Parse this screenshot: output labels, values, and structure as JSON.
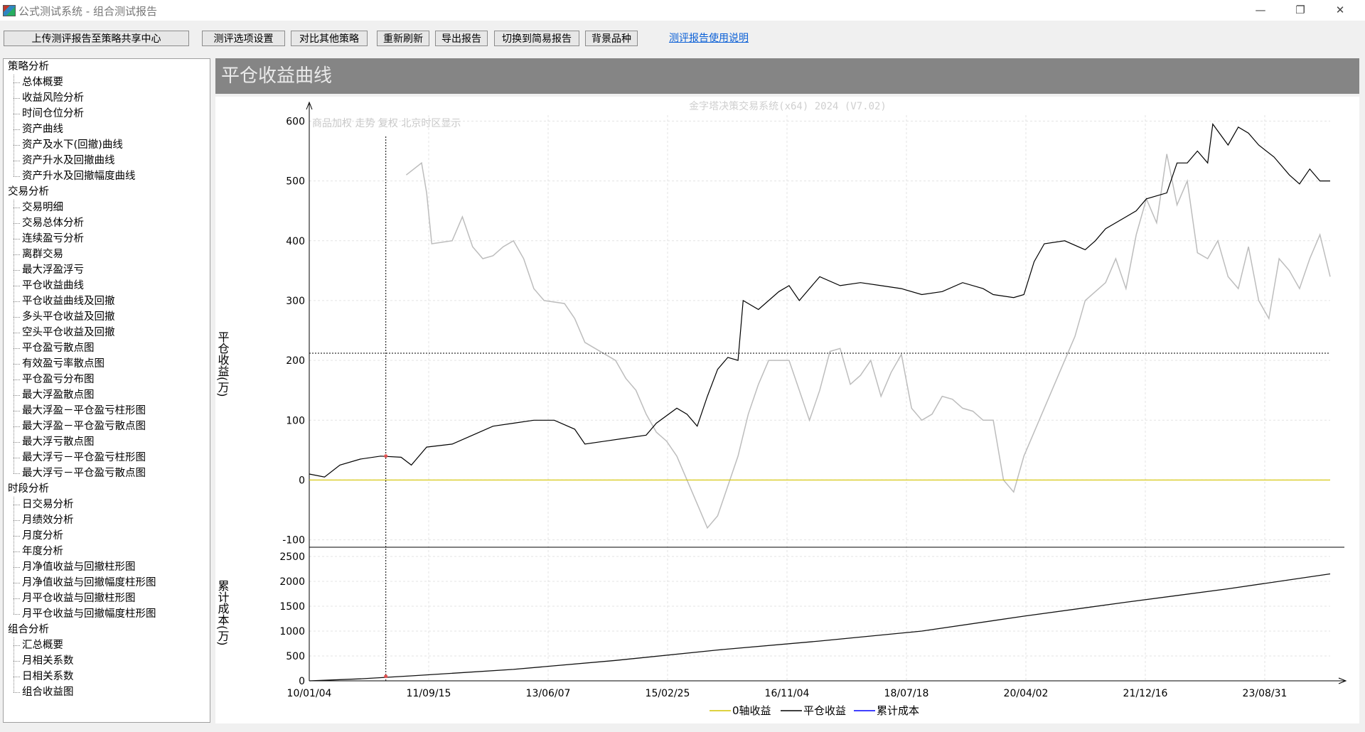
{
  "window": {
    "title": "公式测试系统 - 组合测试报告",
    "min_glyph": "—",
    "restore_glyph": "❐",
    "close_glyph": "✕"
  },
  "toolbar": {
    "upload_label": "上传测评报告至策略共享中心",
    "options_label": "测评选项设置",
    "compare_label": "对比其他策略",
    "refresh_label": "重新刷新",
    "export_label": "导出报告",
    "simple_label": "切换到简易报告",
    "bg_label": "背景品种",
    "help_label": "测评报告使用说明"
  },
  "sidebar": {
    "groups": [
      {
        "label": "策略分析",
        "items": [
          "总体概要",
          "收益风险分析",
          "时间仓位分析",
          "资产曲线",
          "资产及水下(回撤)曲线",
          "资产升水及回撤曲线",
          "资产升水及回撤幅度曲线"
        ]
      },
      {
        "label": "交易分析",
        "items": [
          "交易明细",
          "交易总体分析",
          "连续盈亏分析",
          "离群交易",
          "最大浮盈浮亏",
          "平仓收益曲线",
          "平仓收益曲线及回撤",
          "多头平仓收益及回撤",
          "空头平仓收益及回撤",
          "平仓盈亏散点图",
          "有效盈亏率散点图",
          "平仓盈亏分布图",
          "最大浮盈散点图",
          "最大浮盈－平仓盈亏柱形图",
          "最大浮盈－平仓盈亏散点图",
          "最大浮亏散点图",
          "最大浮亏－平仓盈亏柱形图",
          "最大浮亏－平仓盈亏散点图"
        ]
      },
      {
        "label": "时段分析",
        "items": [
          "日交易分析",
          "月绩效分析",
          "月度分析",
          "年度分析",
          "月净值收益与回撤柱形图",
          "月净值收益与回撤幅度柱形图",
          "月平仓收益与回撤柱形图",
          "月平仓收益与回撤幅度柱形图"
        ]
      },
      {
        "label": "组合分析",
        "items": [
          "汇总概要",
          "月相关系数",
          "日相关系数",
          "组合收益图"
        ]
      }
    ]
  },
  "panel": {
    "title": "平仓收益曲线"
  },
  "chart_data": {
    "type": "line",
    "watermark": "金字塔决策交易系统(x64) 2024 (V7.02)",
    "bg_info": "商品加权  走势  复权  北京时区显示",
    "top": {
      "ylabel": "平仓收益(万)",
      "ylim": [
        -110,
        610
      ],
      "yticks": [
        600,
        500,
        400,
        300,
        200,
        100,
        0,
        -100
      ],
      "series": [
        {
          "name": "0轴收益",
          "color": "#d4c400",
          "values": [
            0,
            0
          ]
        },
        {
          "name": "平仓收益",
          "color": "#000000",
          "points": [
            [
              0,
              10
            ],
            [
              0.015,
              5
            ],
            [
              0.03,
              25
            ],
            [
              0.05,
              35
            ],
            [
              0.07,
              40
            ],
            [
              0.09,
              38
            ],
            [
              0.1,
              25
            ],
            [
              0.115,
              55
            ],
            [
              0.14,
              60
            ],
            [
              0.16,
              75
            ],
            [
              0.18,
              90
            ],
            [
              0.2,
              95
            ],
            [
              0.22,
              100
            ],
            [
              0.24,
              100
            ],
            [
              0.26,
              85
            ],
            [
              0.27,
              60
            ],
            [
              0.29,
              65
            ],
            [
              0.31,
              70
            ],
            [
              0.33,
              75
            ],
            [
              0.34,
              95
            ],
            [
              0.36,
              120
            ],
            [
              0.37,
              110
            ],
            [
              0.38,
              90
            ],
            [
              0.39,
              140
            ],
            [
              0.4,
              185
            ],
            [
              0.41,
              205
            ],
            [
              0.42,
              200
            ],
            [
              0.425,
              300
            ],
            [
              0.44,
              285
            ],
            [
              0.46,
              315
            ],
            [
              0.47,
              325
            ],
            [
              0.48,
              300
            ],
            [
              0.5,
              340
            ],
            [
              0.52,
              325
            ],
            [
              0.54,
              330
            ],
            [
              0.56,
              325
            ],
            [
              0.58,
              320
            ],
            [
              0.6,
              310
            ],
            [
              0.62,
              315
            ],
            [
              0.64,
              330
            ],
            [
              0.66,
              320
            ],
            [
              0.67,
              310
            ],
            [
              0.69,
              305
            ],
            [
              0.7,
              310
            ],
            [
              0.71,
              365
            ],
            [
              0.72,
              395
            ],
            [
              0.74,
              400
            ],
            [
              0.76,
              385
            ],
            [
              0.77,
              400
            ],
            [
              0.78,
              420
            ],
            [
              0.8,
              440
            ],
            [
              0.81,
              450
            ],
            [
              0.82,
              470
            ],
            [
              0.84,
              480
            ],
            [
              0.85,
              530
            ],
            [
              0.86,
              530
            ],
            [
              0.87,
              550
            ],
            [
              0.88,
              530
            ],
            [
              0.885,
              595
            ],
            [
              0.9,
              560
            ],
            [
              0.91,
              590
            ],
            [
              0.92,
              580
            ],
            [
              0.93,
              560
            ],
            [
              0.945,
              540
            ],
            [
              0.96,
              510
            ],
            [
              0.97,
              495
            ],
            [
              0.98,
              520
            ],
            [
              0.99,
              500
            ],
            [
              1.0,
              500
            ]
          ]
        },
        {
          "name": "背景品种",
          "color": "#bdbdbd",
          "points": [
            [
              0.095,
              510
            ],
            [
              0.11,
              530
            ],
            [
              0.115,
              480
            ],
            [
              0.12,
              395
            ],
            [
              0.14,
              400
            ],
            [
              0.15,
              440
            ],
            [
              0.16,
              390
            ],
            [
              0.17,
              370
            ],
            [
              0.18,
              375
            ],
            [
              0.19,
              390
            ],
            [
              0.2,
              400
            ],
            [
              0.21,
              370
            ],
            [
              0.22,
              320
            ],
            [
              0.23,
              300
            ],
            [
              0.25,
              295
            ],
            [
              0.26,
              270
            ],
            [
              0.27,
              230
            ],
            [
              0.29,
              210
            ],
            [
              0.3,
              200
            ],
            [
              0.31,
              170
            ],
            [
              0.32,
              150
            ],
            [
              0.33,
              110
            ],
            [
              0.34,
              80
            ],
            [
              0.35,
              65
            ],
            [
              0.36,
              40
            ],
            [
              0.38,
              -40
            ],
            [
              0.39,
              -80
            ],
            [
              0.4,
              -60
            ],
            [
              0.41,
              -10
            ],
            [
              0.42,
              40
            ],
            [
              0.43,
              110
            ],
            [
              0.44,
              160
            ],
            [
              0.45,
              200
            ],
            [
              0.47,
              200
            ],
            [
              0.48,
              150
            ],
            [
              0.49,
              100
            ],
            [
              0.5,
              150
            ],
            [
              0.51,
              215
            ],
            [
              0.52,
              220
            ],
            [
              0.53,
              160
            ],
            [
              0.54,
              175
            ],
            [
              0.55,
              200
            ],
            [
              0.56,
              140
            ],
            [
              0.57,
              180
            ],
            [
              0.58,
              210
            ],
            [
              0.59,
              120
            ],
            [
              0.6,
              100
            ],
            [
              0.61,
              110
            ],
            [
              0.62,
              140
            ],
            [
              0.63,
              135
            ],
            [
              0.64,
              120
            ],
            [
              0.65,
              115
            ],
            [
              0.66,
              100
            ],
            [
              0.67,
              100
            ],
            [
              0.68,
              0
            ],
            [
              0.69,
              -20
            ],
            [
              0.7,
              40
            ],
            [
              0.72,
              120
            ],
            [
              0.74,
              200
            ],
            [
              0.75,
              240
            ],
            [
              0.76,
              300
            ],
            [
              0.78,
              330
            ],
            [
              0.79,
              370
            ],
            [
              0.8,
              320
            ],
            [
              0.81,
              410
            ],
            [
              0.82,
              470
            ],
            [
              0.83,
              430
            ],
            [
              0.84,
              545
            ],
            [
              0.85,
              460
            ],
            [
              0.86,
              500
            ],
            [
              0.87,
              380
            ],
            [
              0.88,
              370
            ],
            [
              0.89,
              400
            ],
            [
              0.9,
              340
            ],
            [
              0.91,
              320
            ],
            [
              0.92,
              390
            ],
            [
              0.93,
              300
            ],
            [
              0.94,
              270
            ],
            [
              0.95,
              370
            ],
            [
              0.96,
              350
            ],
            [
              0.97,
              320
            ],
            [
              0.98,
              370
            ],
            [
              0.99,
              410
            ],
            [
              1.0,
              340
            ]
          ]
        }
      ],
      "crosshair_y": 212
    },
    "bottom": {
      "ylabel": "累计成本(万)",
      "ylim": [
        0,
        2600
      ],
      "yticks": [
        2500,
        2000,
        1500,
        1000,
        500,
        0
      ],
      "series": [
        {
          "name": "累计成本",
          "color": "#0000ff",
          "points": [
            [
              0,
              0
            ],
            [
              0.05,
              40
            ],
            [
              0.1,
              100
            ],
            [
              0.2,
              230
            ],
            [
              0.3,
              410
            ],
            [
              0.4,
              620
            ],
            [
              0.5,
              800
            ],
            [
              0.6,
              1000
            ],
            [
              0.7,
              1300
            ],
            [
              0.8,
              1580
            ],
            [
              0.9,
              1850
            ],
            [
              1.0,
              2150
            ]
          ]
        }
      ]
    },
    "xticks": [
      "10/01/04",
      "11/09/15",
      "13/06/07",
      "15/02/25",
      "16/11/04",
      "18/07/18",
      "20/04/02",
      "21/12/16",
      "23/08/31"
    ],
    "crosshair_x": 0.075,
    "legend": [
      "0轴收益",
      "平仓收益",
      "累计成本"
    ],
    "legend_colors": [
      "#d4c400",
      "#000000",
      "#0000ff"
    ]
  }
}
